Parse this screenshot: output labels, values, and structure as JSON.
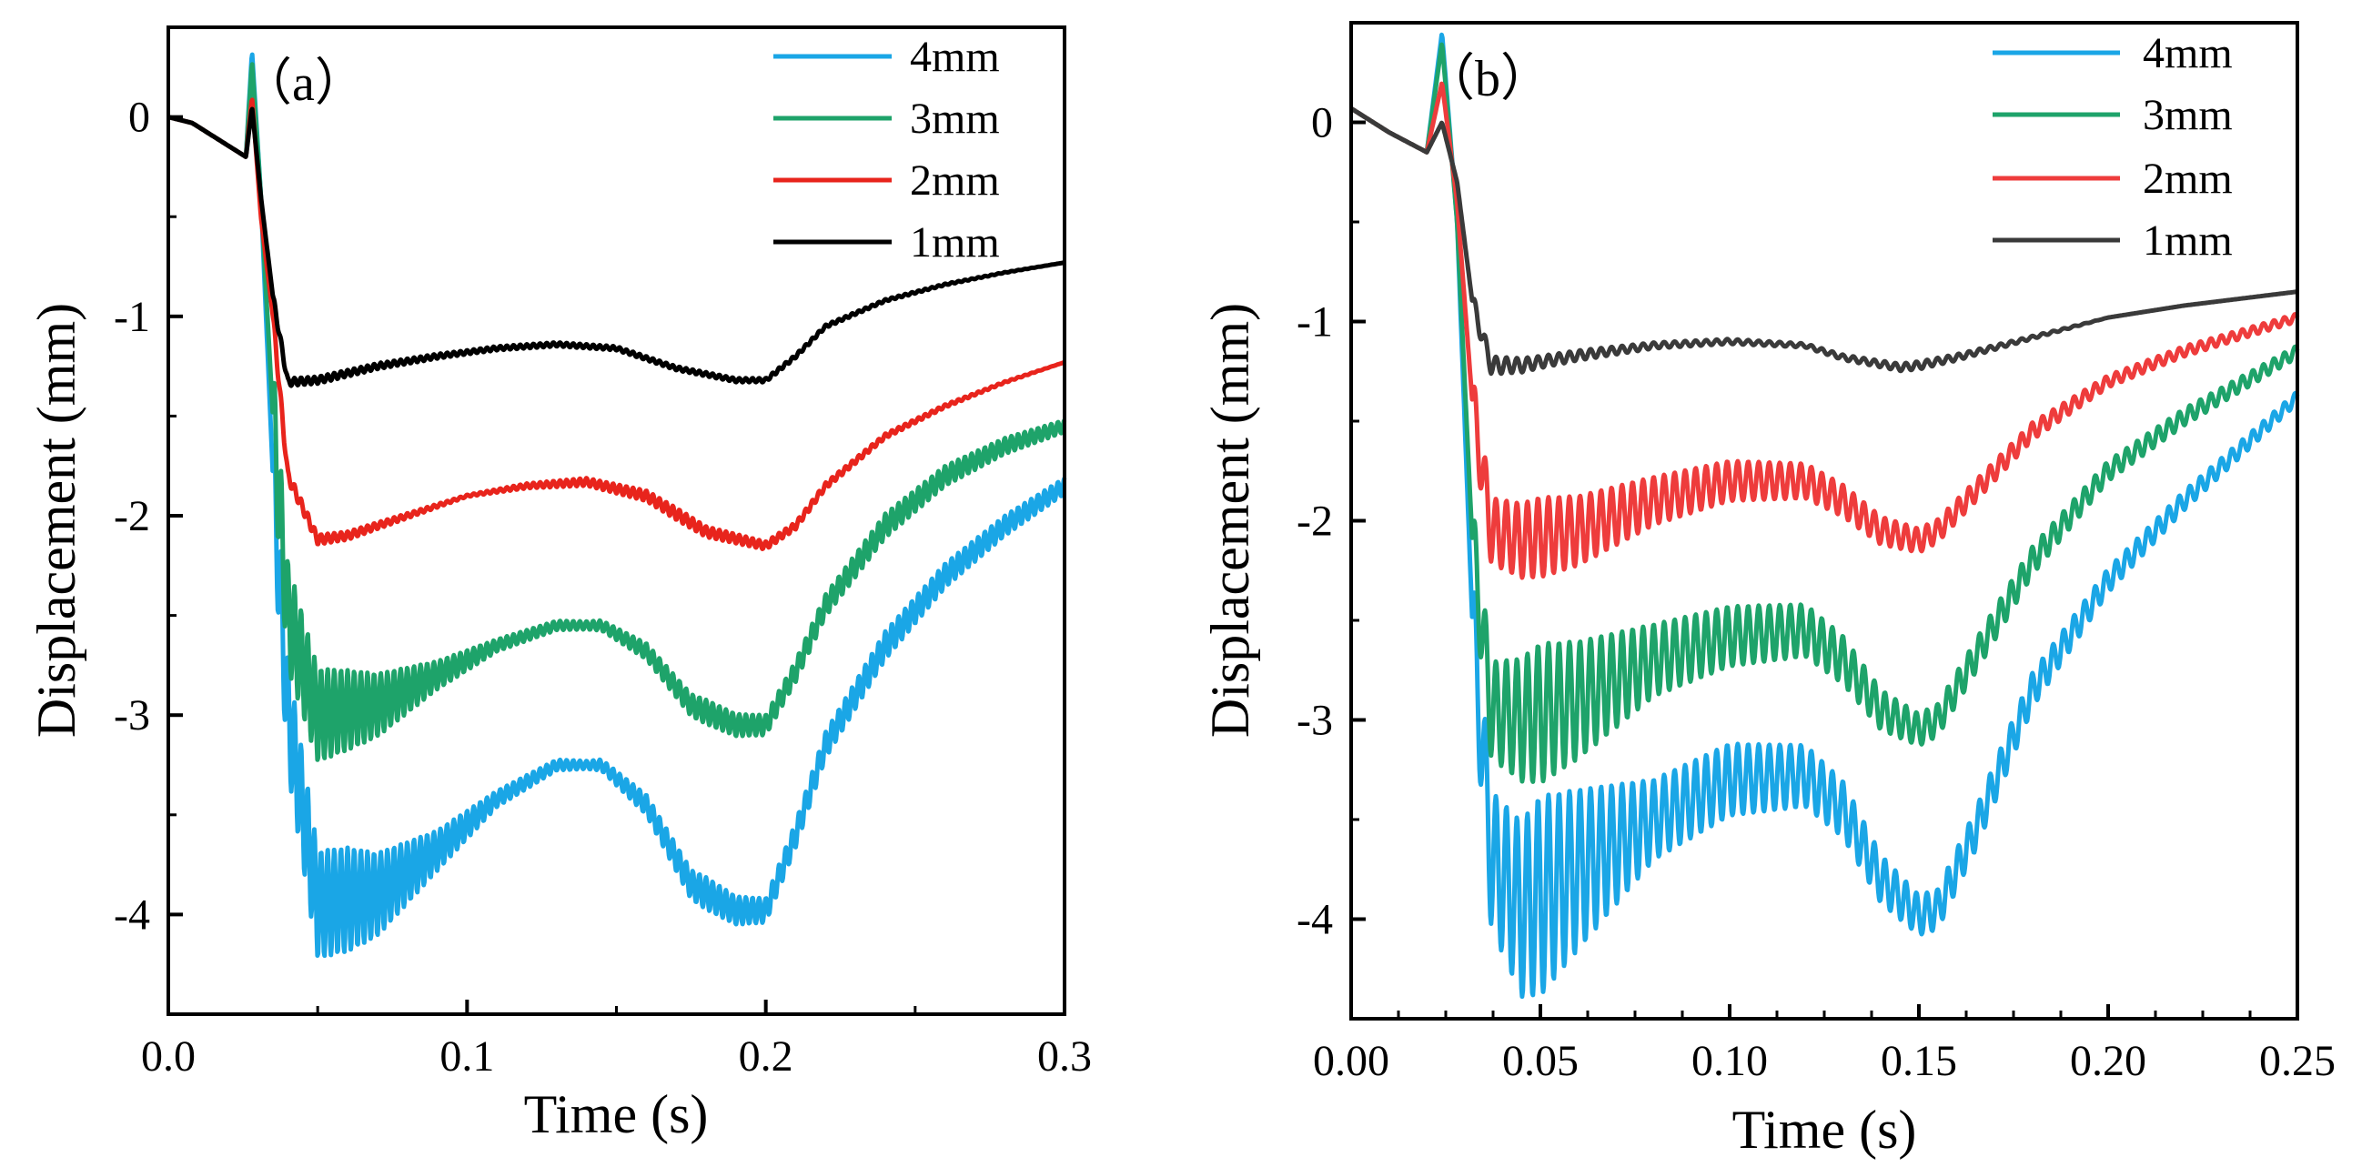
{
  "chart_data": [
    {
      "type": "line",
      "panel_label": "（a）",
      "xlabel": "Time (s)",
      "ylabel": "Displacement (mm)",
      "xlim": [
        0.0,
        0.3
      ],
      "ylim": [
        -4.5,
        0.45
      ],
      "x_ticks": [
        0.0,
        0.1,
        0.2,
        0.3
      ],
      "x_tick_labels": [
        "0.0",
        "0.1",
        "0.2",
        "0.3"
      ],
      "y_ticks": [
        0,
        -1,
        -2,
        -3,
        -4
      ],
      "y_tick_labels": [
        "0",
        "-1",
        "-2",
        "-3",
        "-4"
      ],
      "legend_position": "top-right",
      "series": [
        {
          "name": "4mm",
          "color": "#1aa6e6",
          "points": [
            [
              0.0,
              0.0
            ],
            [
              0.008,
              -0.03
            ],
            [
              0.026,
              -0.2
            ],
            [
              0.028,
              0.33
            ],
            [
              0.031,
              -0.4
            ],
            [
              0.035,
              -1.8
            ],
            [
              0.04,
              -3.0
            ],
            [
              0.05,
              -3.95
            ],
            [
              0.07,
              -3.9
            ],
            [
              0.09,
              -3.68
            ],
            [
              0.11,
              -3.42
            ],
            [
              0.13,
              -3.25
            ],
            [
              0.145,
              -3.25
            ],
            [
              0.16,
              -3.45
            ],
            [
              0.175,
              -3.85
            ],
            [
              0.19,
              -3.98
            ],
            [
              0.2,
              -3.98
            ],
            [
              0.21,
              -3.6
            ],
            [
              0.22,
              -3.15
            ],
            [
              0.24,
              -2.65
            ],
            [
              0.26,
              -2.3
            ],
            [
              0.28,
              -2.05
            ],
            [
              0.3,
              -1.85
            ]
          ],
          "osc": [
            [
              0.035,
              0.28
            ],
            [
              0.06,
              0.26
            ],
            [
              0.09,
              0.1
            ],
            [
              0.11,
              0.04
            ],
            [
              0.14,
              0.02
            ],
            [
              0.18,
              0.08
            ],
            [
              0.2,
              0.06
            ],
            [
              0.24,
              0.07
            ],
            [
              0.3,
              0.04
            ]
          ]
        },
        {
          "name": "3mm",
          "color": "#1ea36a",
          "points": [
            [
              0.0,
              0.0
            ],
            [
              0.008,
              -0.03
            ],
            [
              0.026,
              -0.2
            ],
            [
              0.028,
              0.28
            ],
            [
              0.031,
              -0.4
            ],
            [
              0.035,
              -1.5
            ],
            [
              0.04,
              -2.5
            ],
            [
              0.05,
              -3.0
            ],
            [
              0.07,
              -2.95
            ],
            [
              0.09,
              -2.8
            ],
            [
              0.11,
              -2.65
            ],
            [
              0.13,
              -2.55
            ],
            [
              0.145,
              -2.55
            ],
            [
              0.16,
              -2.68
            ],
            [
              0.175,
              -2.95
            ],
            [
              0.19,
              -3.05
            ],
            [
              0.2,
              -3.05
            ],
            [
              0.21,
              -2.78
            ],
            [
              0.22,
              -2.45
            ],
            [
              0.24,
              -2.05
            ],
            [
              0.26,
              -1.8
            ],
            [
              0.28,
              -1.65
            ],
            [
              0.3,
              -1.55
            ]
          ],
          "osc": [
            [
              0.035,
              0.28
            ],
            [
              0.06,
              0.2
            ],
            [
              0.09,
              0.07
            ],
            [
              0.11,
              0.03
            ],
            [
              0.14,
              0.02
            ],
            [
              0.18,
              0.06
            ],
            [
              0.2,
              0.05
            ],
            [
              0.24,
              0.06
            ],
            [
              0.3,
              0.03
            ]
          ]
        },
        {
          "name": "2mm",
          "color": "#e8241c",
          "points": [
            [
              0.0,
              0.0
            ],
            [
              0.008,
              -0.03
            ],
            [
              0.026,
              -0.2
            ],
            [
              0.028,
              0.1
            ],
            [
              0.031,
              -0.5
            ],
            [
              0.035,
              -1.0
            ],
            [
              0.04,
              -1.8
            ],
            [
              0.05,
              -2.12
            ],
            [
              0.06,
              -2.1
            ],
            [
              0.08,
              -2.0
            ],
            [
              0.1,
              -1.9
            ],
            [
              0.12,
              -1.85
            ],
            [
              0.14,
              -1.83
            ],
            [
              0.16,
              -1.9
            ],
            [
              0.18,
              -2.08
            ],
            [
              0.2,
              -2.15
            ],
            [
              0.21,
              -2.05
            ],
            [
              0.22,
              -1.85
            ],
            [
              0.24,
              -1.6
            ],
            [
              0.26,
              -1.45
            ],
            [
              0.28,
              -1.33
            ],
            [
              0.3,
              -1.23
            ]
          ],
          "osc": [
            [
              0.035,
              0.03
            ],
            [
              0.1,
              0.005
            ],
            [
              0.17,
              0.03
            ],
            [
              0.2,
              0.02
            ],
            [
              0.3,
              0.0
            ]
          ]
        },
        {
          "name": "1mm",
          "color": "#000000",
          "points": [
            [
              0.0,
              0.0
            ],
            [
              0.008,
              -0.03
            ],
            [
              0.026,
              -0.2
            ],
            [
              0.028,
              0.05
            ],
            [
              0.031,
              -0.4
            ],
            [
              0.035,
              -0.9
            ],
            [
              0.04,
              -1.33
            ],
            [
              0.05,
              -1.32
            ],
            [
              0.07,
              -1.25
            ],
            [
              0.09,
              -1.2
            ],
            [
              0.11,
              -1.16
            ],
            [
              0.13,
              -1.14
            ],
            [
              0.15,
              -1.16
            ],
            [
              0.17,
              -1.26
            ],
            [
              0.19,
              -1.32
            ],
            [
              0.2,
              -1.32
            ],
            [
              0.21,
              -1.2
            ],
            [
              0.22,
              -1.05
            ],
            [
              0.24,
              -0.92
            ],
            [
              0.26,
              -0.84
            ],
            [
              0.28,
              -0.78
            ],
            [
              0.3,
              -0.73
            ]
          ],
          "osc": [
            [
              0.035,
              0.02
            ],
            [
              0.1,
              0.01
            ],
            [
              0.2,
              0.01
            ],
            [
              0.3,
              0.0
            ]
          ]
        }
      ]
    },
    {
      "type": "line",
      "panel_label": "（b）",
      "xlabel": "Time (s)",
      "ylabel": "Displacement (mm)",
      "xlim": [
        0.0,
        0.25
      ],
      "ylim": [
        -4.5,
        0.5
      ],
      "x_ticks": [
        0.0,
        0.05,
        0.1,
        0.15,
        0.2,
        0.25
      ],
      "x_tick_labels": [
        "0.00",
        "0.05",
        "0.10",
        "0.15",
        "0.20",
        "0.25"
      ],
      "y_ticks": [
        0,
        -1,
        -2,
        -3,
        -4
      ],
      "y_tick_labels": [
        "0",
        "-1",
        "-2",
        "-3",
        "-4"
      ],
      "legend_position": "top-right",
      "series": [
        {
          "name": "4mm",
          "color": "#1aa6e6",
          "points": [
            [
              0.0,
              0.07
            ],
            [
              0.01,
              -0.05
            ],
            [
              0.02,
              -0.15
            ],
            [
              0.024,
              0.45
            ],
            [
              0.028,
              -0.5
            ],
            [
              0.032,
              -2.5
            ],
            [
              0.037,
              -3.7
            ],
            [
              0.045,
              -3.95
            ],
            [
              0.06,
              -3.75
            ],
            [
              0.08,
              -3.5
            ],
            [
              0.1,
              -3.3
            ],
            [
              0.12,
              -3.28
            ],
            [
              0.13,
              -3.45
            ],
            [
              0.14,
              -3.8
            ],
            [
              0.15,
              -3.98
            ],
            [
              0.155,
              -3.95
            ],
            [
              0.165,
              -3.55
            ],
            [
              0.18,
              -2.85
            ],
            [
              0.2,
              -2.3
            ],
            [
              0.22,
              -1.9
            ],
            [
              0.25,
              -1.38
            ]
          ],
          "osc": [
            [
              0.032,
              0.28
            ],
            [
              0.05,
              0.5
            ],
            [
              0.08,
              0.2
            ],
            [
              0.1,
              0.18
            ],
            [
              0.13,
              0.14
            ],
            [
              0.15,
              0.1
            ],
            [
              0.17,
              0.1
            ],
            [
              0.2,
              0.06
            ],
            [
              0.25,
              0.03
            ]
          ]
        },
        {
          "name": "3mm",
          "color": "#1ea36a",
          "points": [
            [
              0.0,
              0.07
            ],
            [
              0.01,
              -0.05
            ],
            [
              0.02,
              -0.15
            ],
            [
              0.024,
              0.4
            ],
            [
              0.028,
              -0.5
            ],
            [
              0.032,
              -2.1
            ],
            [
              0.037,
              -2.95
            ],
            [
              0.045,
              -3.0
            ],
            [
              0.06,
              -2.9
            ],
            [
              0.08,
              -2.7
            ],
            [
              0.1,
              -2.58
            ],
            [
              0.12,
              -2.55
            ],
            [
              0.13,
              -2.7
            ],
            [
              0.14,
              -2.95
            ],
            [
              0.15,
              -3.05
            ],
            [
              0.155,
              -3.0
            ],
            [
              0.165,
              -2.68
            ],
            [
              0.18,
              -2.2
            ],
            [
              0.2,
              -1.75
            ],
            [
              0.22,
              -1.48
            ],
            [
              0.25,
              -1.15
            ]
          ],
          "osc": [
            [
              0.032,
              0.2
            ],
            [
              0.05,
              0.35
            ],
            [
              0.08,
              0.18
            ],
            [
              0.1,
              0.15
            ],
            [
              0.13,
              0.12
            ],
            [
              0.15,
              0.08
            ],
            [
              0.17,
              0.08
            ],
            [
              0.2,
              0.05
            ],
            [
              0.25,
              0.03
            ]
          ]
        },
        {
          "name": "2mm",
          "color": "#ee3c3c",
          "points": [
            [
              0.0,
              0.07
            ],
            [
              0.01,
              -0.05
            ],
            [
              0.02,
              -0.15
            ],
            [
              0.024,
              0.2
            ],
            [
              0.028,
              -0.4
            ],
            [
              0.032,
              -1.4
            ],
            [
              0.037,
              -2.05
            ],
            [
              0.045,
              -2.1
            ],
            [
              0.06,
              -2.05
            ],
            [
              0.08,
              -1.9
            ],
            [
              0.1,
              -1.8
            ],
            [
              0.12,
              -1.8
            ],
            [
              0.13,
              -1.9
            ],
            [
              0.14,
              -2.05
            ],
            [
              0.15,
              -2.1
            ],
            [
              0.155,
              -2.05
            ],
            [
              0.165,
              -1.85
            ],
            [
              0.18,
              -1.55
            ],
            [
              0.2,
              -1.3
            ],
            [
              0.22,
              -1.15
            ],
            [
              0.25,
              -0.98
            ]
          ],
          "osc": [
            [
              0.032,
              0.15
            ],
            [
              0.05,
              0.2
            ],
            [
              0.08,
              0.12
            ],
            [
              0.1,
              0.1
            ],
            [
              0.13,
              0.08
            ],
            [
              0.15,
              0.06
            ],
            [
              0.17,
              0.05
            ],
            [
              0.2,
              0.03
            ],
            [
              0.25,
              0.02
            ]
          ]
        },
        {
          "name": "1mm",
          "color": "#3a3a3a",
          "points": [
            [
              0.0,
              0.07
            ],
            [
              0.01,
              -0.05
            ],
            [
              0.02,
              -0.15
            ],
            [
              0.024,
              0.0
            ],
            [
              0.028,
              -0.3
            ],
            [
              0.032,
              -0.9
            ],
            [
              0.037,
              -1.22
            ],
            [
              0.045,
              -1.22
            ],
            [
              0.06,
              -1.17
            ],
            [
              0.08,
              -1.12
            ],
            [
              0.1,
              -1.1
            ],
            [
              0.12,
              -1.12
            ],
            [
              0.13,
              -1.18
            ],
            [
              0.145,
              -1.23
            ],
            [
              0.15,
              -1.22
            ],
            [
              0.16,
              -1.18
            ],
            [
              0.18,
              -1.08
            ],
            [
              0.2,
              -0.98
            ],
            [
              0.22,
              -0.92
            ],
            [
              0.25,
              -0.85
            ]
          ],
          "osc": [
            [
              0.032,
              0.05
            ],
            [
              0.05,
              0.03
            ],
            [
              0.08,
              0.015
            ],
            [
              0.12,
              0.01
            ],
            [
              0.15,
              0.02
            ],
            [
              0.2,
              0.0
            ],
            [
              0.25,
              0.0
            ]
          ]
        }
      ]
    }
  ]
}
